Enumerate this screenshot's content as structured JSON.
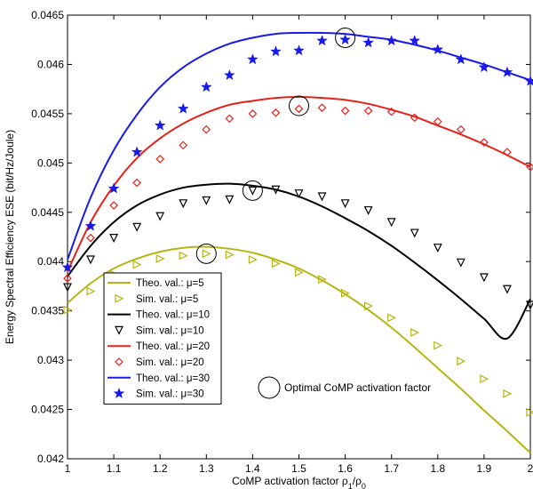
{
  "chart_data": {
    "type": "line",
    "xlabel": "CoMP activation factor ρ1/ρ0",
    "xlabel_main": "CoMP activation factor ρ",
    "xlabel_sub1": "1",
    "xlabel_mid": "/ρ",
    "xlabel_sub0": "0",
    "ylabel": "Energy Spectral Efficiency ESE (bit/Hz/Joule)",
    "xlim": [
      1,
      2
    ],
    "ylim": [
      0.042,
      0.0465
    ],
    "xticks": [
      1,
      1.1,
      1.2,
      1.3,
      1.4,
      1.5,
      1.6,
      1.7,
      1.8,
      1.9,
      2
    ],
    "xtick_labels": [
      "1",
      "1.1",
      "1.2",
      "1.3",
      "1.4",
      "1.5",
      "1.6",
      "1.7",
      "1.8",
      "1.9",
      "2"
    ],
    "yticks": [
      0.042,
      0.0425,
      0.043,
      0.0435,
      0.044,
      0.0445,
      0.045,
      0.0455,
      0.046,
      0.0465
    ],
    "ytick_labels": [
      "0.042",
      "0.0425",
      "0.043",
      "0.0435",
      "0.044",
      "0.0445",
      "0.045",
      "0.0455",
      "0.046",
      "0.0465"
    ],
    "grid": false,
    "legend_position": "bottom-left",
    "theory_x": [
      1,
      1.05,
      1.1,
      1.15,
      1.2,
      1.25,
      1.3,
      1.35,
      1.4,
      1.45,
      1.5,
      1.55,
      1.6,
      1.65,
      1.7,
      1.75,
      1.8,
      1.85,
      1.9,
      1.95,
      2
    ],
    "sim_x": [
      1,
      1.05,
      1.1,
      1.15,
      1.2,
      1.25,
      1.3,
      1.35,
      1.4,
      1.45,
      1.5,
      1.55,
      1.6,
      1.65,
      1.7,
      1.75,
      1.8,
      1.85,
      1.9,
      1.95,
      2
    ],
    "series": [
      {
        "name": "Theo. val.: μ=5",
        "kind": "theory",
        "color": "#b5b514",
        "values": [
          0.04358,
          0.04378,
          0.04393,
          0.04403,
          0.0441,
          0.04414,
          0.04415,
          0.04413,
          0.04409,
          0.04402,
          0.04393,
          0.04381,
          0.04367,
          0.04351,
          0.04333,
          0.04313,
          0.04292,
          0.04271,
          0.04249,
          0.04228,
          0.04206
        ]
      },
      {
        "name": "Sim. val.: μ=5",
        "kind": "sim",
        "marker": "triangle-right",
        "color": "#b5b514",
        "values": [
          0.04351,
          0.0437,
          0.04387,
          0.04397,
          0.04403,
          0.04406,
          0.04408,
          0.04407,
          0.04402,
          0.04398,
          0.04389,
          0.04382,
          0.04368,
          0.04355,
          0.04343,
          0.04328,
          0.04315,
          0.04299,
          0.04281,
          0.04266,
          0.04247
        ]
      },
      {
        "name": "Theo. val.: μ=10",
        "kind": "theory",
        "color": "#000000",
        "values": [
          0.04385,
          0.04416,
          0.0444,
          0.04457,
          0.04468,
          0.04475,
          0.04478,
          0.04479,
          0.04477,
          0.04473,
          0.04466,
          0.04456,
          0.04444,
          0.04431,
          0.04416,
          0.04399,
          0.04381,
          0.04362,
          0.04342,
          0.04322,
          0.04362
        ]
      },
      {
        "name": "Sim. val.: μ=10",
        "kind": "sim",
        "marker": "triangle-down",
        "color": "#000000",
        "values": [
          0.04374,
          0.04402,
          0.04424,
          0.04435,
          0.04446,
          0.04459,
          0.04462,
          0.04463,
          0.04472,
          0.04473,
          0.04469,
          0.04466,
          0.04459,
          0.04452,
          0.0444,
          0.04429,
          0.04414,
          0.04399,
          0.04384,
          0.04372,
          0.04356
        ]
      },
      {
        "name": "Theo. val.: μ=20",
        "kind": "theory",
        "color": "#e8201a",
        "values": [
          0.0439,
          0.0444,
          0.04477,
          0.04505,
          0.04525,
          0.0454,
          0.04551,
          0.04559,
          0.04563,
          0.04566,
          0.04567,
          0.04566,
          0.04564,
          0.0456,
          0.04554,
          0.04547,
          0.04538,
          0.04529,
          0.04519,
          0.04508,
          0.04496
        ]
      },
      {
        "name": "Sim. val.: μ=20",
        "kind": "sim",
        "marker": "diamond",
        "color": "#e8201a",
        "values": [
          0.04383,
          0.04424,
          0.04457,
          0.0448,
          0.04504,
          0.04518,
          0.04534,
          0.04545,
          0.0455,
          0.04551,
          0.04555,
          0.04556,
          0.04553,
          0.04553,
          0.04552,
          0.04546,
          0.04542,
          0.04534,
          0.04521,
          0.04511,
          0.04496
        ]
      },
      {
        "name": "Theo. val.: μ=30",
        "kind": "theory",
        "color": "#1a1ae8",
        "values": [
          0.04402,
          0.04465,
          0.04513,
          0.04549,
          0.04577,
          0.04597,
          0.04611,
          0.04621,
          0.04627,
          0.04631,
          0.04632,
          0.04632,
          0.04631,
          0.04628,
          0.04625,
          0.0462,
          0.04614,
          0.04607,
          0.046,
          0.04592,
          0.04584
        ]
      },
      {
        "name": "Sim. val.: μ=30",
        "kind": "sim",
        "marker": "star",
        "color": "#1a1ae8",
        "values": [
          0.04394,
          0.04436,
          0.04474,
          0.04511,
          0.04538,
          0.04555,
          0.04577,
          0.04589,
          0.04605,
          0.04613,
          0.04614,
          0.04624,
          0.04625,
          0.04622,
          0.04624,
          0.04624,
          0.04615,
          0.04605,
          0.04597,
          0.04592,
          0.04583
        ]
      }
    ],
    "optimal_points": [
      {
        "x": 1.3,
        "y": 0.04408
      },
      {
        "x": 1.4,
        "y": 0.04472
      },
      {
        "x": 1.5,
        "y": 0.04558
      },
      {
        "x": 1.6,
        "y": 0.04627
      }
    ],
    "annotation": "Optimal CoMP activation factor"
  }
}
